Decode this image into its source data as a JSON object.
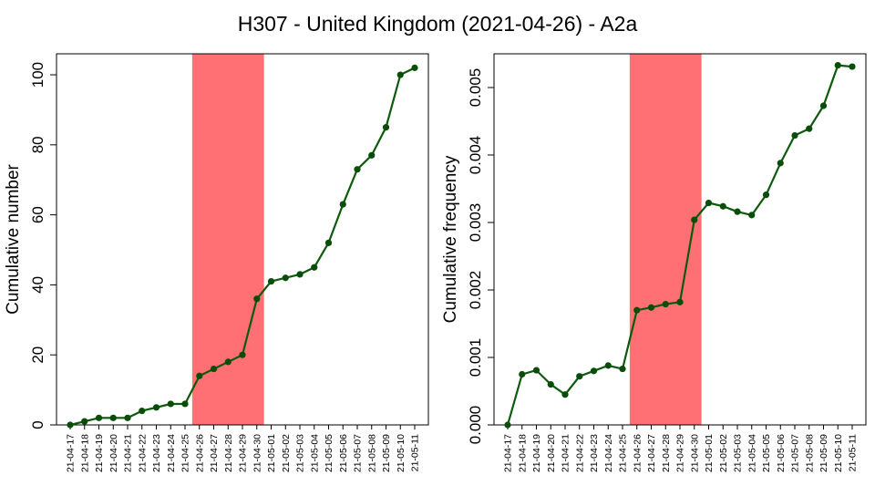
{
  "title": "H307 - United Kingdom (2021-04-26) - A2a",
  "colors": {
    "line": "#0d5a0d",
    "point": "#0a4d0a",
    "highlight": "#ff7074",
    "axis": "#000000"
  },
  "chart_data": [
    {
      "type": "line",
      "ylabel": "Cumulative number",
      "ylim": [
        0,
        106
      ],
      "yticks": [
        0,
        20,
        40,
        60,
        80,
        100
      ],
      "ytick_labels": [
        "0",
        "20",
        "40",
        "60",
        "80",
        "100"
      ],
      "highlight": {
        "from": "21-04-26",
        "to": "21-04-30"
      },
      "categories": [
        "21-04-17",
        "21-04-18",
        "21-04-19",
        "21-04-20",
        "21-04-21",
        "21-04-22",
        "21-04-23",
        "21-04-24",
        "21-04-25",
        "21-04-26",
        "21-04-27",
        "21-04-28",
        "21-04-29",
        "21-04-30",
        "21-05-01",
        "21-05-02",
        "21-05-03",
        "21-05-04",
        "21-05-05",
        "21-05-06",
        "21-05-07",
        "21-05-08",
        "21-05-09",
        "21-05-10",
        "21-05-11"
      ],
      "values": [
        0,
        1,
        2,
        2,
        2,
        4,
        5,
        6,
        6,
        14,
        16,
        18,
        20,
        36,
        41,
        42,
        43,
        45,
        52,
        63,
        73,
        77,
        85,
        100,
        102
      ],
      "grid": false,
      "legend": "none"
    },
    {
      "type": "line",
      "ylabel": "Cumulative frequency",
      "ylim": [
        0,
        0.0055
      ],
      "yticks": [
        0,
        0.001,
        0.002,
        0.003,
        0.004,
        0.005
      ],
      "ytick_labels": [
        "0.000",
        "0.001",
        "0.002",
        "0.003",
        "0.004",
        "0.005"
      ],
      "highlight": {
        "from": "21-04-26",
        "to": "21-04-30"
      },
      "categories": [
        "21-04-17",
        "21-04-18",
        "21-04-19",
        "21-04-20",
        "21-04-21",
        "21-04-22",
        "21-04-23",
        "21-04-24",
        "21-04-25",
        "21-04-26",
        "21-04-27",
        "21-04-28",
        "21-04-29",
        "21-04-30",
        "21-05-01",
        "21-05-02",
        "21-05-03",
        "21-05-04",
        "21-05-05",
        "21-05-06",
        "21-05-07",
        "21-05-08",
        "21-05-09",
        "21-05-10",
        "21-05-11"
      ],
      "values": [
        0.0,
        0.00075,
        0.00081,
        0.0006,
        0.00045,
        0.00072,
        0.0008,
        0.00088,
        0.00083,
        0.0017,
        0.00174,
        0.00179,
        0.00182,
        0.00304,
        0.00329,
        0.00324,
        0.00316,
        0.00311,
        0.00341,
        0.00388,
        0.00429,
        0.00439,
        0.00473,
        0.00533,
        0.00531
      ],
      "grid": false,
      "legend": "none"
    }
  ]
}
